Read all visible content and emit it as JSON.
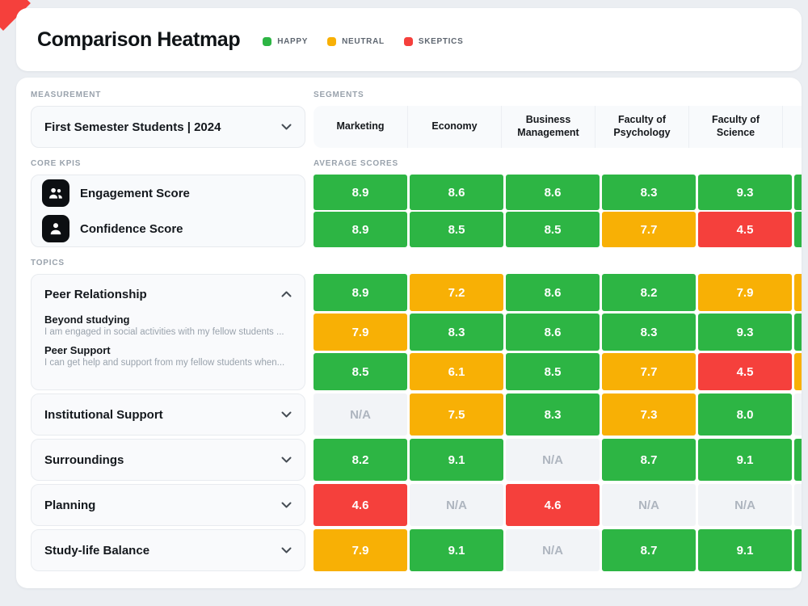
{
  "header": {
    "title": "Comparison Heatmap",
    "legend": [
      {
        "label": "HAPPY",
        "key": "happy"
      },
      {
        "label": "NEUTRAL",
        "key": "neutral"
      },
      {
        "label": "SKEPTICS",
        "key": "skeptic"
      }
    ]
  },
  "colors": {
    "happy": "#2DB544",
    "neutral": "#F8B005",
    "skeptic": "#F5403C",
    "na_bg": "#F2F4F7",
    "na_text": "#AEB5BF"
  },
  "measurement": {
    "section_label": "MEASUREMENT",
    "value": "First Semester Students | 2024"
  },
  "segments": {
    "section_label": "SEGMENTS",
    "columns": [
      "Marketing",
      "Economy",
      "Business Management",
      "Faculty of Psychology",
      "Faculty of Science",
      ""
    ]
  },
  "core_kpis": {
    "section_label": "CORE KPIS",
    "items": [
      {
        "label": "Engagement Score",
        "icon": "engagement-icon"
      },
      {
        "label": "Confidence Score",
        "icon": "confidence-icon"
      }
    ]
  },
  "average_scores": {
    "section_label": "AVERAGE SCORES",
    "rows": [
      {
        "kpi": "Engagement Score",
        "cells": [
          {
            "value": "8.9",
            "sentiment": "happy"
          },
          {
            "value": "8.6",
            "sentiment": "happy"
          },
          {
            "value": "8.6",
            "sentiment": "happy"
          },
          {
            "value": "8.3",
            "sentiment": "happy"
          },
          {
            "value": "9.3",
            "sentiment": "happy"
          },
          {
            "value": "",
            "sentiment": "happy"
          }
        ]
      },
      {
        "kpi": "Confidence Score",
        "cells": [
          {
            "value": "8.9",
            "sentiment": "happy"
          },
          {
            "value": "8.5",
            "sentiment": "happy"
          },
          {
            "value": "8.5",
            "sentiment": "happy"
          },
          {
            "value": "7.7",
            "sentiment": "neutral"
          },
          {
            "value": "4.5",
            "sentiment": "skeptic"
          },
          {
            "value": "",
            "sentiment": "happy"
          }
        ]
      }
    ]
  },
  "topics": {
    "section_label": "TOPICS",
    "items": [
      {
        "label": "Peer Relationship",
        "expanded": true,
        "subtopics": [
          {
            "label": "Beyond studying",
            "description": "I am engaged in social activities with my fellow students ..."
          },
          {
            "label": "Peer Support",
            "description": "I can get help and support from my fellow students when..."
          }
        ],
        "rows": [
          {
            "cells": [
              {
                "value": "8.9",
                "sentiment": "happy"
              },
              {
                "value": "7.2",
                "sentiment": "neutral"
              },
              {
                "value": "8.6",
                "sentiment": "happy"
              },
              {
                "value": "8.2",
                "sentiment": "happy"
              },
              {
                "value": "7.9",
                "sentiment": "neutral"
              },
              {
                "value": "",
                "sentiment": "neutral"
              }
            ]
          },
          {
            "cells": [
              {
                "value": "7.9",
                "sentiment": "neutral"
              },
              {
                "value": "8.3",
                "sentiment": "happy"
              },
              {
                "value": "8.6",
                "sentiment": "happy"
              },
              {
                "value": "8.3",
                "sentiment": "happy"
              },
              {
                "value": "9.3",
                "sentiment": "happy"
              },
              {
                "value": "",
                "sentiment": "happy"
              }
            ]
          },
          {
            "cells": [
              {
                "value": "8.5",
                "sentiment": "happy"
              },
              {
                "value": "6.1",
                "sentiment": "neutral"
              },
              {
                "value": "8.5",
                "sentiment": "happy"
              },
              {
                "value": "7.7",
                "sentiment": "neutral"
              },
              {
                "value": "4.5",
                "sentiment": "skeptic"
              },
              {
                "value": "",
                "sentiment": "neutral"
              }
            ]
          }
        ]
      },
      {
        "label": "Institutional Support",
        "expanded": false,
        "subtopics": [],
        "rows": [
          {
            "cells": [
              {
                "value": "N/A",
                "sentiment": "na"
              },
              {
                "value": "7.5",
                "sentiment": "neutral"
              },
              {
                "value": "8.3",
                "sentiment": "happy"
              },
              {
                "value": "7.3",
                "sentiment": "neutral"
              },
              {
                "value": "8.0",
                "sentiment": "happy"
              },
              {
                "value": "",
                "sentiment": "na"
              }
            ]
          }
        ]
      },
      {
        "label": "Surroundings",
        "expanded": false,
        "subtopics": [],
        "rows": [
          {
            "cells": [
              {
                "value": "8.2",
                "sentiment": "happy"
              },
              {
                "value": "9.1",
                "sentiment": "happy"
              },
              {
                "value": "N/A",
                "sentiment": "na"
              },
              {
                "value": "8.7",
                "sentiment": "happy"
              },
              {
                "value": "9.1",
                "sentiment": "happy"
              },
              {
                "value": "",
                "sentiment": "happy"
              }
            ]
          }
        ]
      },
      {
        "label": "Planning",
        "expanded": false,
        "subtopics": [],
        "rows": [
          {
            "cells": [
              {
                "value": "4.6",
                "sentiment": "skeptic"
              },
              {
                "value": "N/A",
                "sentiment": "na"
              },
              {
                "value": "4.6",
                "sentiment": "skeptic"
              },
              {
                "value": "N/A",
                "sentiment": "na"
              },
              {
                "value": "N/A",
                "sentiment": "na"
              },
              {
                "value": "",
                "sentiment": "na"
              }
            ]
          }
        ]
      },
      {
        "label": "Study-life Balance",
        "expanded": false,
        "subtopics": [],
        "rows": [
          {
            "cells": [
              {
                "value": "7.9",
                "sentiment": "neutral"
              },
              {
                "value": "9.1",
                "sentiment": "happy"
              },
              {
                "value": "N/A",
                "sentiment": "na"
              },
              {
                "value": "8.7",
                "sentiment": "happy"
              },
              {
                "value": "9.1",
                "sentiment": "happy"
              },
              {
                "value": "",
                "sentiment": "happy"
              }
            ]
          }
        ]
      }
    ]
  }
}
